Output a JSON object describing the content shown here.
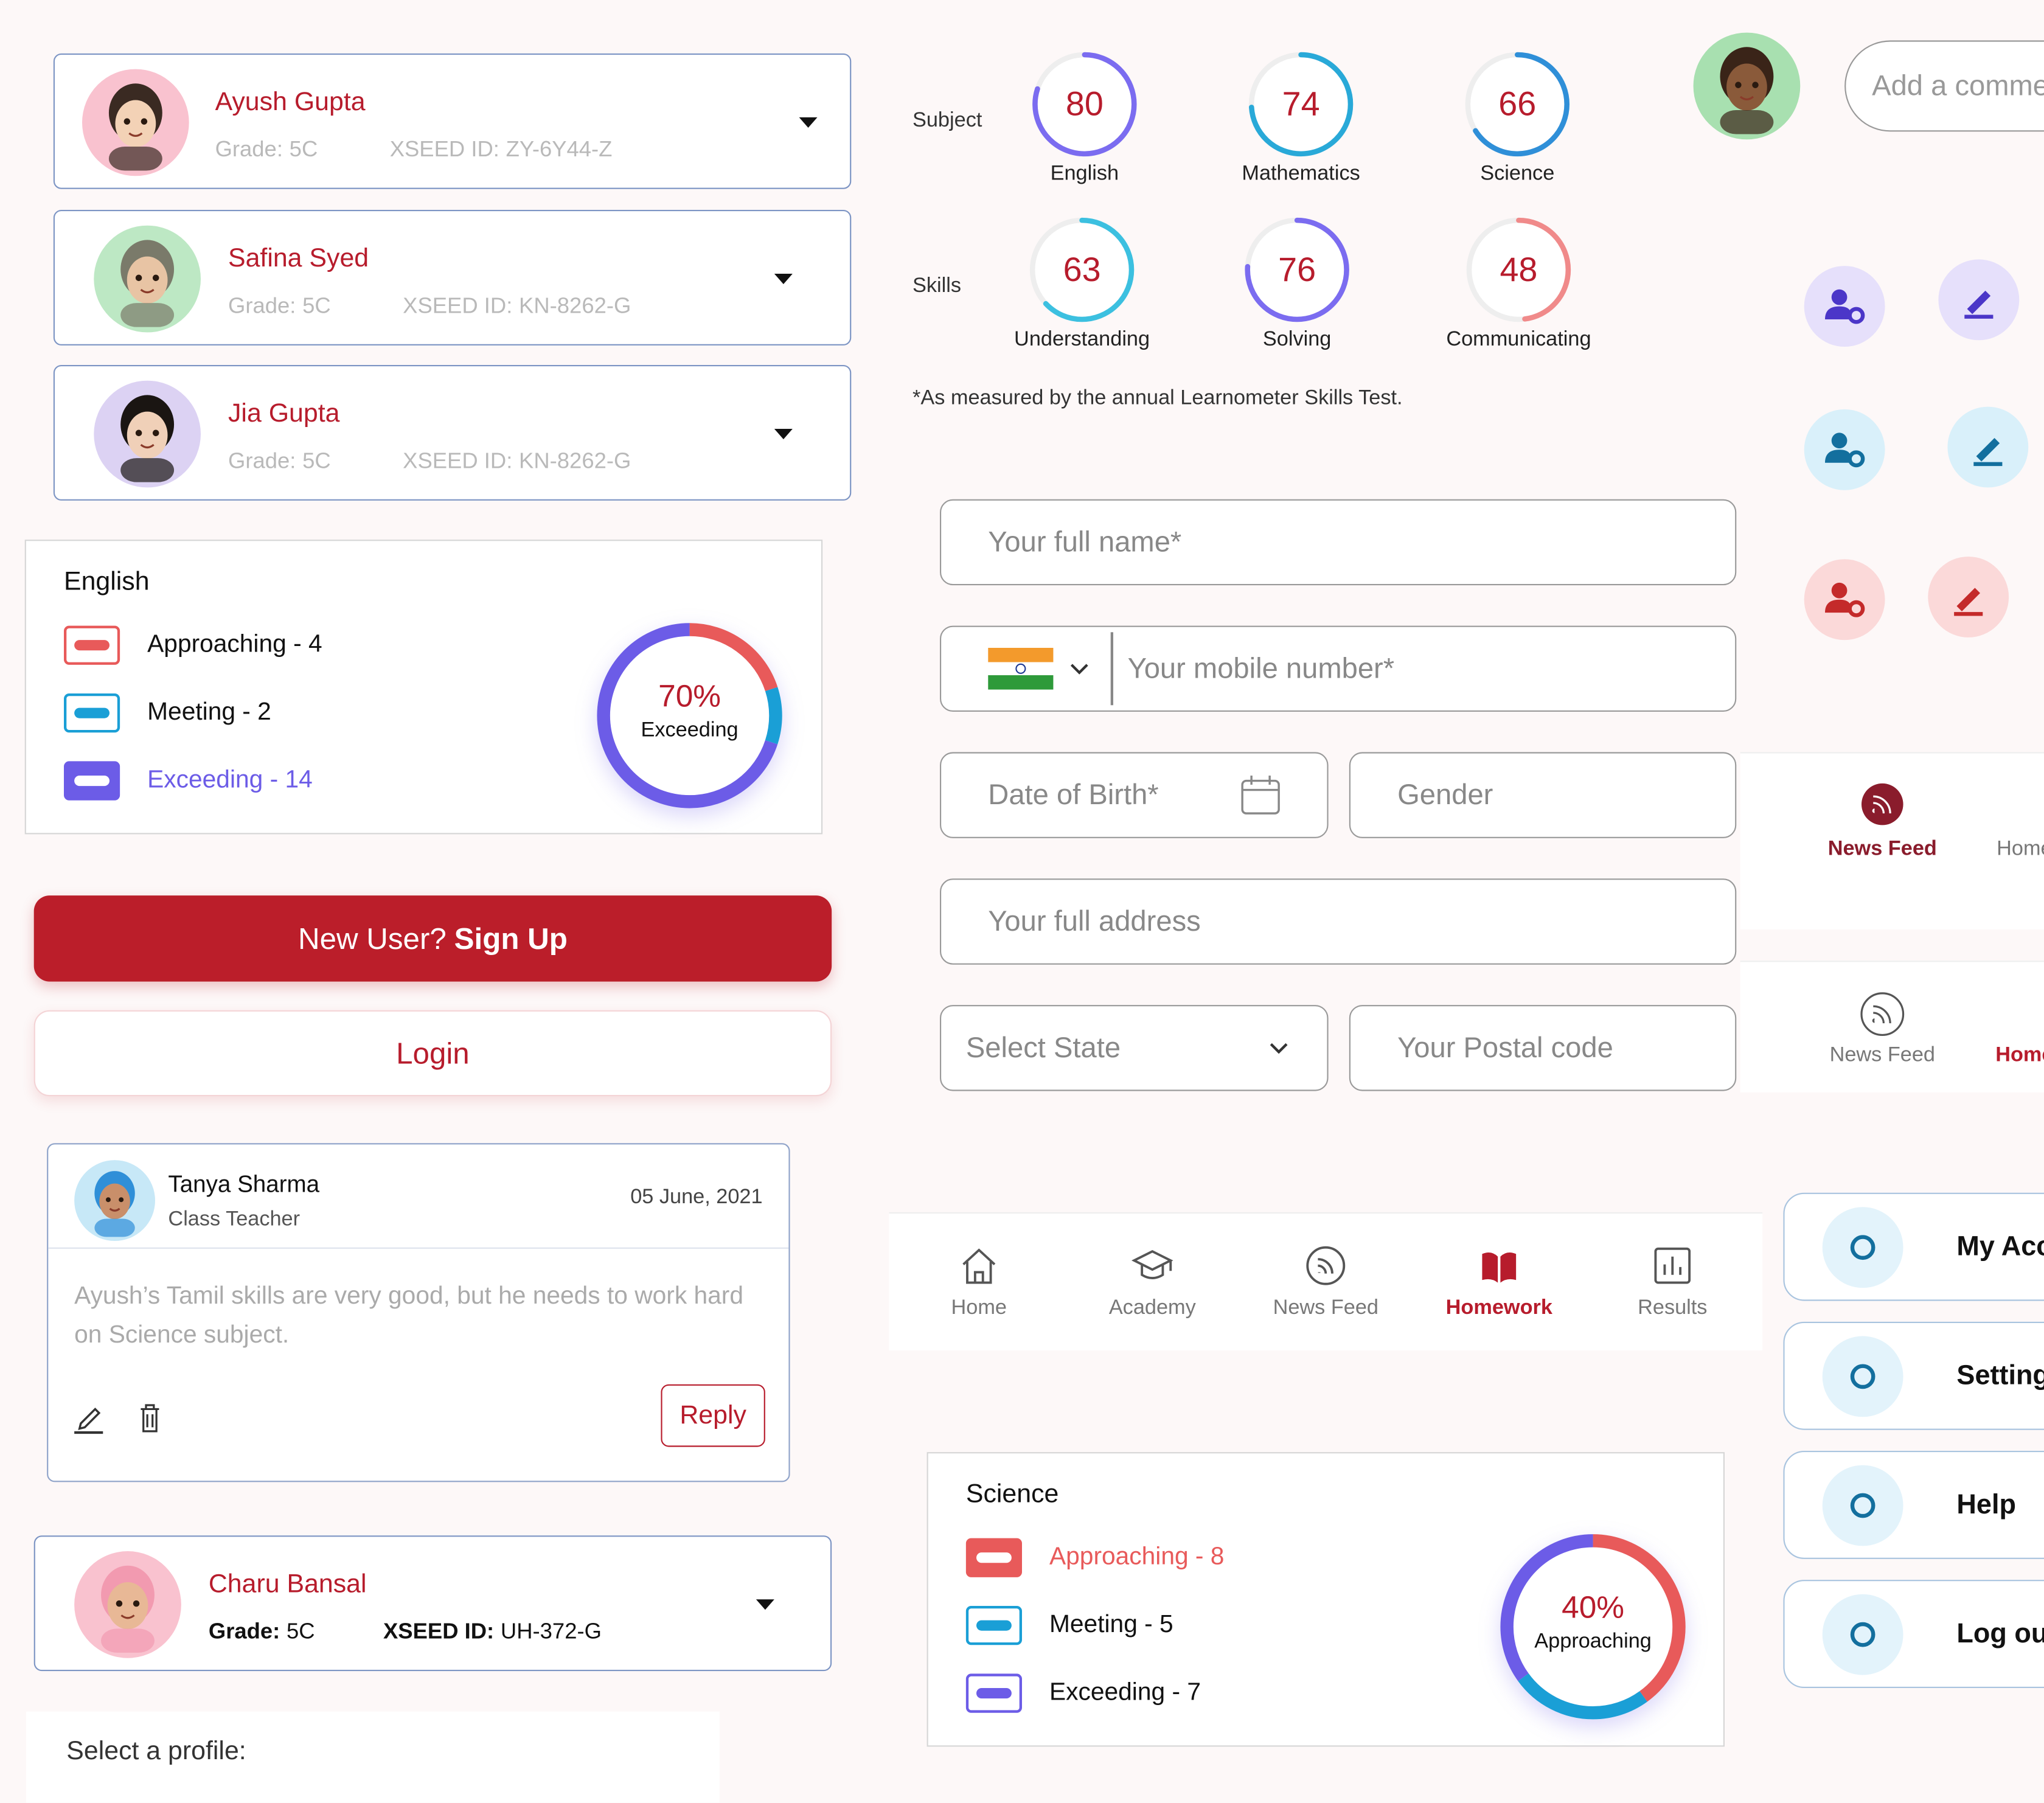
{
  "profiles": [
    {
      "name": "Ayush Gupta",
      "grade_label": "Grade:",
      "grade": "5C",
      "id_label": "XSEED ID:",
      "id": "ZY-6Y44-Z"
    },
    {
      "name": "Safina Syed",
      "grade_label": "Grade:",
      "grade": "5C",
      "id_label": "XSEED ID:",
      "id": "KN-8262-G"
    },
    {
      "name": "Jia Gupta",
      "grade_label": "Grade:",
      "grade": "5C",
      "id_label": "XSEED ID:",
      "id": "KN-8262-G"
    },
    {
      "name": "Charu Bansal",
      "grade_label": "Grade:",
      "grade": "5C",
      "id_label": "XSEED ID:",
      "id": "UH-372-G"
    }
  ],
  "scores": {
    "subject_label": "Subject",
    "subjects": [
      {
        "name": "English",
        "value": 80,
        "color": "#7b6cf0"
      },
      {
        "name": "Mathematics",
        "value": 74,
        "color": "#29a9d8"
      },
      {
        "name": "Science",
        "value": 66,
        "color": "#2f8fd8"
      }
    ],
    "skills_label": "Skills",
    "skills": [
      {
        "name": "Understanding",
        "value": 63,
        "color": "#3cc0e0"
      },
      {
        "name": "Solving",
        "value": 76,
        "color": "#7b6cf0"
      },
      {
        "name": "Communicating",
        "value": 48,
        "color": "#f08a8a"
      }
    ],
    "footnote": "*As measured by the annual Learnometer Skills Test."
  },
  "comment_placeholder": "Add a comment",
  "english": {
    "title": "English",
    "active": 2,
    "percent": {
      "value": 70,
      "label": "70%"
    },
    "status": "Exceeding",
    "legend": [
      {
        "label": "Approaching - 4",
        "value": 4,
        "color": "#e85a5a"
      },
      {
        "label": "Meeting - 2",
        "value": 2,
        "color": "#1a9fd6"
      },
      {
        "label": "Exceeding - 14",
        "value": 14,
        "color": "#6c5ce7"
      }
    ]
  },
  "auth": {
    "signup_prefix": "New User?",
    "signup_action": "Sign Up",
    "login": "Login"
  },
  "comment": {
    "author": "Tanya Sharma",
    "role": "Class Teacher",
    "date": "05 June, 2021",
    "body": "Ayush’s Tamil skills are very good, but he needs to work hard on Science subject.",
    "reply": "Reply"
  },
  "select_profile": "Select a profile:",
  "form": {
    "full_name": "Your full name*",
    "mobile": "Your mobile number*",
    "dob": "Date of Birth*",
    "gender": "Gender",
    "address": "Your full address",
    "state": "Select State",
    "postal": "Your Postal code"
  },
  "tab_bars": [
    {
      "active": 0,
      "items": [
        "News Feed",
        "Home"
      ]
    },
    {
      "active": 1,
      "items": [
        "News Feed",
        "Home"
      ]
    }
  ],
  "nav": {
    "active": 3,
    "items": [
      "Home",
      "Academy",
      "News Feed",
      "Homework",
      "Results"
    ]
  },
  "science": {
    "title": "Science",
    "active": 0,
    "percent": {
      "value": 40,
      "label": "40%"
    },
    "status": "Approaching",
    "legend": [
      {
        "label": "Approaching - 8",
        "value": 8,
        "color": "#e85a5a"
      },
      {
        "label": "Meeting - 5",
        "value": 5,
        "color": "#1a9fd6"
      },
      {
        "label": "Exceeding - 7",
        "value": 7,
        "color": "#6c5ce7"
      }
    ]
  },
  "menu": [
    "My Account",
    "Settings",
    "Help",
    "Log out"
  ]
}
